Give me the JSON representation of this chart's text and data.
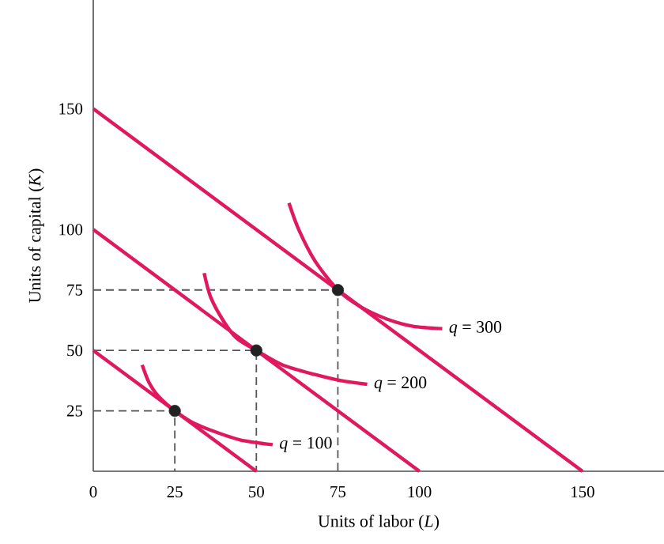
{
  "chart_data": {
    "type": "line",
    "xlabel": "Units of labor (*L*)",
    "ylabel": "Units of capital (*K*)",
    "xlim": [
      0,
      175
    ],
    "ylim": [
      0,
      195
    ],
    "xticks": [
      {
        "value": 0,
        "label": "0"
      },
      25,
      50,
      75,
      100,
      150
    ],
    "yticks": [
      25,
      50,
      75,
      100,
      150
    ],
    "grid": false,
    "series": [
      {
        "color": "#555555",
        "line_style": "dashed",
        "x": [
          0,
          25,
          25
        ],
        "values": [
          25,
          25,
          0
        ]
      },
      {
        "color": "#555555",
        "line_style": "dashed",
        "x": [
          0,
          50,
          50
        ],
        "values": [
          50,
          50,
          0
        ]
      },
      {
        "color": "#555555",
        "line_style": "dashed",
        "x": [
          0,
          75,
          75
        ],
        "values": [
          75,
          75,
          0
        ]
      },
      {
        "color": "#e0195f",
        "x": [
          0,
          50
        ],
        "values": [
          50,
          0
        ]
      },
      {
        "color": "#e0195f",
        "x": [
          0,
          100
        ],
        "values": [
          100,
          0
        ]
      },
      {
        "color": "#e0195f",
        "x": [
          0,
          150
        ],
        "values": [
          150,
          0
        ]
      },
      {
        "color": "#e0195f",
        "x": [
          15,
          17,
          20,
          25,
          30,
          36,
          45,
          55
        ],
        "values": [
          44,
          37,
          31,
          25,
          20.5,
          17,
          13,
          11
        ]
      },
      {
        "color": "#e0195f",
        "x": [
          34,
          36,
          40,
          44,
          50,
          58,
          68,
          76,
          84
        ],
        "values": [
          82,
          72,
          62,
          55,
          50,
          44,
          40,
          37.5,
          36
        ]
      },
      {
        "color": "#e0195f",
        "x": [
          60,
          63,
          68,
          75,
          82,
          90,
          98,
          107
        ],
        "values": [
          111,
          100,
          87,
          75,
          68,
          63,
          60,
          59
        ]
      },
      {
        "type": "scatter",
        "color": "#222222",
        "x": [
          25,
          50,
          75
        ],
        "values": [
          25,
          50,
          75
        ]
      }
    ],
    "annotations": [
      {
        "text": "*q* = 100",
        "x": 55,
        "y": 11
      },
      {
        "text": "*q* = 200",
        "x": 84,
        "y": 36
      },
      {
        "text": "*q* = 300",
        "x": 107,
        "y": 59
      }
    ]
  }
}
